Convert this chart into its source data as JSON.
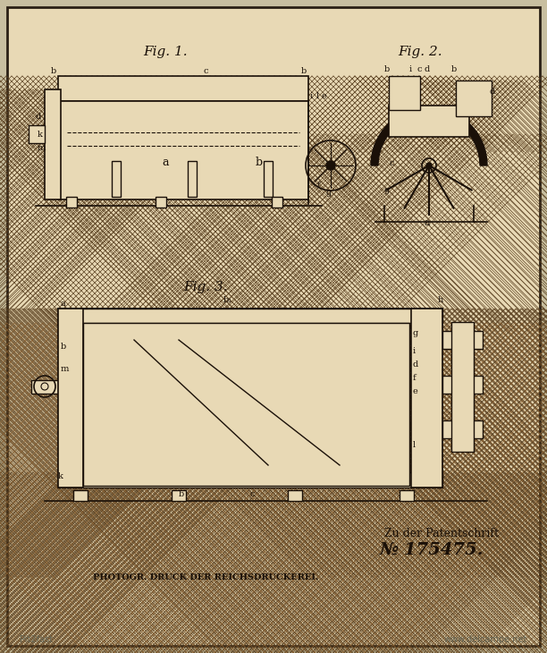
{
  "bg_color": "#e8d9b5",
  "border_color": "#2a2015",
  "line_color": "#1a1008",
  "hatch_color": "#5a4020",
  "fig1_label": "Fig. 1.",
  "fig2_label": "Fig. 2.",
  "fig3_label": "Fig. 3.",
  "patent_text1": "Zu der Patentschrift",
  "patent_number": "№ 175475.",
  "bottom_text": "PHOTOGR. DRUCK DER REICHSDRUCKEREI.",
  "watermark1": "Pit2fast",
  "watermark2": "www.delcampe.net",
  "page_bg": "#c8bfa0"
}
